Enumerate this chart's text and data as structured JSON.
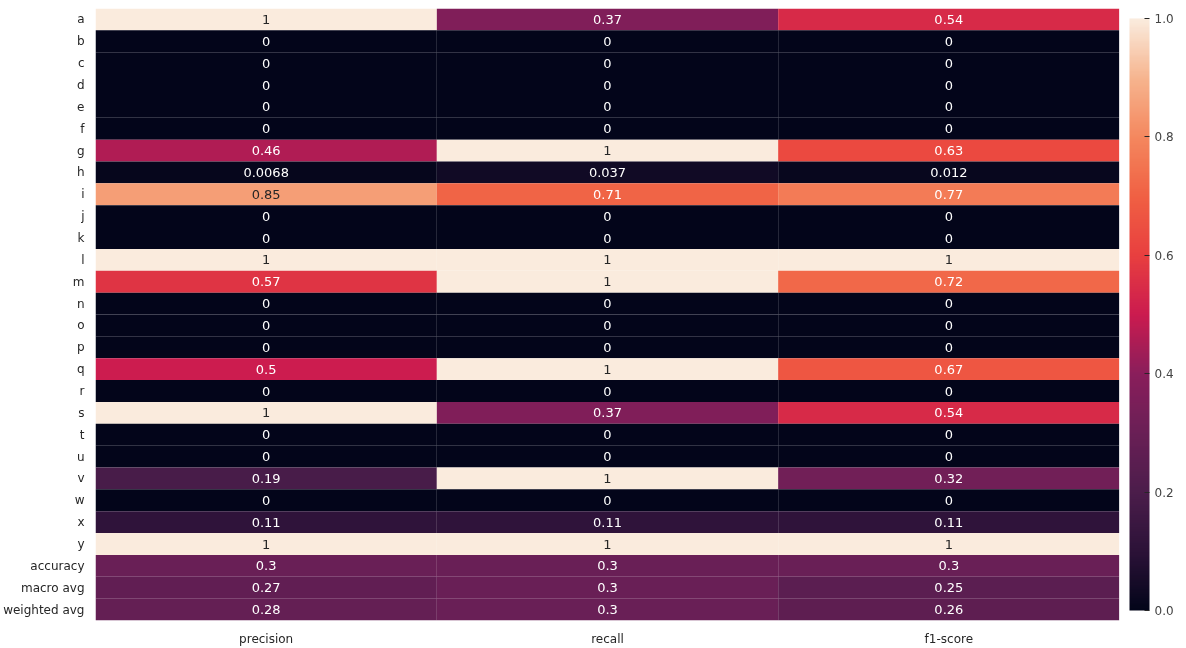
{
  "chart_data": {
    "type": "heatmap",
    "categories": [
      "precision",
      "recall",
      "f1-score"
    ],
    "y_categories": [
      "a",
      "b",
      "c",
      "d",
      "e",
      "f",
      "g",
      "h",
      "i",
      "j",
      "k",
      "l",
      "m",
      "n",
      "o",
      "p",
      "q",
      "r",
      "s",
      "t",
      "u",
      "v",
      "w",
      "x",
      "y",
      "accuracy",
      "macro avg",
      "weighted avg"
    ],
    "cells": [
      [
        1,
        0.37,
        0.54
      ],
      [
        0,
        0,
        0
      ],
      [
        0,
        0,
        0
      ],
      [
        0,
        0,
        0
      ],
      [
        0,
        0,
        0
      ],
      [
        0,
        0,
        0
      ],
      [
        0.46,
        1,
        0.63
      ],
      [
        0.0068,
        0.037,
        0.012
      ],
      [
        0.85,
        0.71,
        0.77
      ],
      [
        0,
        0,
        0
      ],
      [
        0,
        0,
        0
      ],
      [
        1,
        1,
        1
      ],
      [
        0.57,
        1,
        0.72
      ],
      [
        0,
        0,
        0
      ],
      [
        0,
        0,
        0
      ],
      [
        0,
        0,
        0
      ],
      [
        0.5,
        1,
        0.67
      ],
      [
        0,
        0,
        0
      ],
      [
        1,
        0.37,
        0.54
      ],
      [
        0,
        0,
        0
      ],
      [
        0,
        0,
        0
      ],
      [
        0.19,
        1,
        0.32
      ],
      [
        0,
        0,
        0
      ],
      [
        0.11,
        0.11,
        0.11
      ],
      [
        1,
        1,
        1
      ],
      [
        0.3,
        0.3,
        0.3
      ],
      [
        0.27,
        0.3,
        0.25
      ],
      [
        0.28,
        0.3,
        0.26
      ]
    ],
    "data_labels": true,
    "clim": [
      0,
      1
    ],
    "cticks": [
      {
        "value": 0,
        "label": "0.0"
      },
      {
        "value": 0.2,
        "label": "0.2"
      },
      {
        "value": 0.4,
        "label": "0.4"
      },
      {
        "value": 0.6,
        "label": "0.6"
      },
      {
        "value": 0.8,
        "label": "0.8"
      },
      {
        "value": 1,
        "label": "1.0"
      }
    ]
  }
}
